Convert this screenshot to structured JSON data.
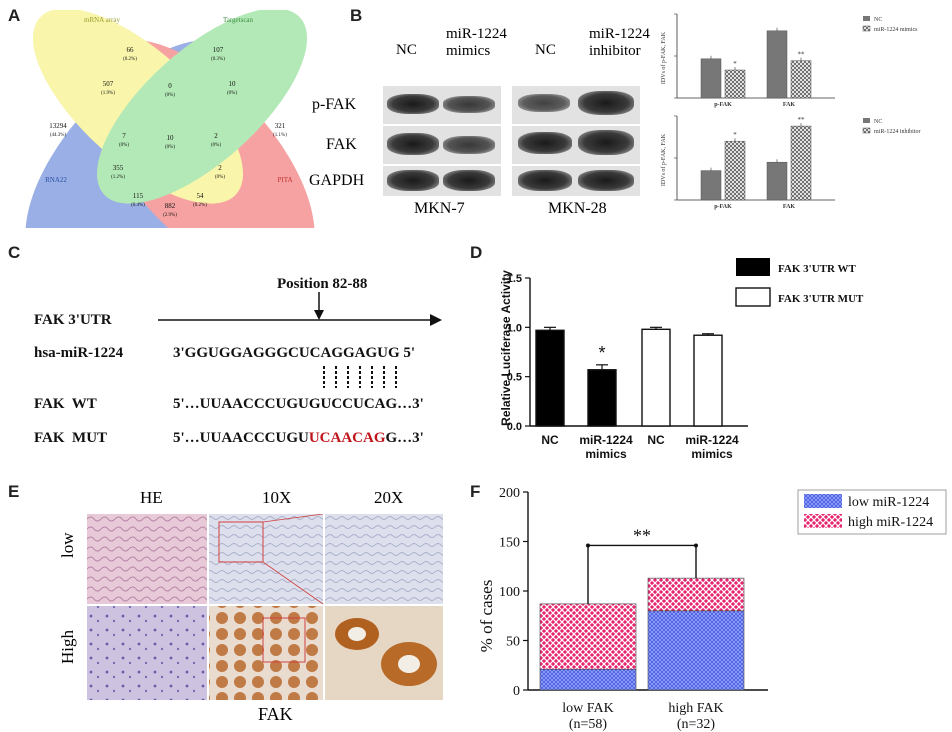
{
  "panels": {
    "a": "A",
    "b": "B",
    "c": "C",
    "d": "D",
    "e": "E",
    "f": "F"
  },
  "venn": {
    "sets": [
      "mRNA array",
      "Targetscan",
      "RNA22",
      "PITA"
    ],
    "colors": [
      "#f6ef77",
      "#86dc8a",
      "#5b7fd6",
      "#f26a6a"
    ],
    "regions": [
      {
        "count": "13294",
        "pct": "(44.3%)"
      },
      {
        "count": "66",
        "pct": "(0.2%)"
      },
      {
        "count": "107",
        "pct": "(0.3%)"
      },
      {
        "count": "321",
        "pct": "(1.1%)"
      },
      {
        "count": "507",
        "pct": "(1.9%)"
      },
      {
        "count": "0",
        "pct": "(0%)"
      },
      {
        "count": "10",
        "pct": "(0%)"
      },
      {
        "count": "7",
        "pct": "(0%)"
      },
      {
        "count": "2",
        "pct": "(0%)"
      },
      {
        "count": "10",
        "pct": "(0%)"
      },
      {
        "count": "355",
        "pct": "(1.2%)"
      },
      {
        "count": "2",
        "pct": "(0%)"
      },
      {
        "count": "115",
        "pct": "(0.4%)"
      },
      {
        "count": "54",
        "pct": "(0.2%)"
      },
      {
        "count": "882",
        "pct": "(2.9%)"
      }
    ]
  },
  "western": {
    "row_labels": [
      "p-FAK",
      "FAK",
      "GAPDH"
    ],
    "col1_labels": [
      "NC",
      "miR-1224 mimics"
    ],
    "col2_labels": [
      "NC",
      "miR-1224 inhibitor"
    ],
    "cell_lines": [
      "MKN-7",
      "MKN-28"
    ]
  },
  "bar_top": {
    "ylabel": "IDVs of p-FAK, FAK",
    "legend": [
      "NC",
      "miR-1224 mimics"
    ],
    "categories": [
      "p-FAK",
      "FAK"
    ],
    "marks": [
      "*",
      "**"
    ]
  },
  "bar_bottom": {
    "ylabel": "IDVs of p-FAK, FAK",
    "legend": [
      "NC",
      "miR-1224 inhibitor"
    ],
    "categories": [
      "p-FAK",
      "FAK"
    ],
    "marks": [
      "*",
      "**"
    ]
  },
  "sequence": {
    "position_label": "Position 82-88",
    "row_labels": [
      "FAK 3'UTR",
      "hsa-miR-1224",
      "FAK  WT",
      "FAK  MUT"
    ],
    "mir_seq": "3'GGUGGAGGGCUCAGGAGUG 5'",
    "wt_seq": "5'…UUAACCCUGUGUCCUCAG…3'",
    "mut_prefix": "5'…UUAACCCUGU",
    "mut_highlight": "UCAACAG",
    "mut_suffix": "G…3'",
    "highlight_color": "#c0141b"
  },
  "ihc": {
    "col_labels": [
      "HE",
      "10X",
      "20X"
    ],
    "row_labels": [
      "low",
      "High"
    ],
    "caption": "FAK"
  },
  "chart_data": [
    {
      "type": "bar",
      "panel": "B (upper)",
      "categories": [
        "p-FAK",
        "FAK"
      ],
      "ylabel": "IDVs of p-FAK, FAK",
      "series": [
        {
          "name": "NC",
          "values": [
            0.42,
            0.72
          ]
        },
        {
          "name": "miR-1224 mimics",
          "values": [
            0.3,
            0.4
          ]
        }
      ],
      "ylim": [
        0,
        0.9
      ]
    },
    {
      "type": "bar",
      "panel": "B (lower)",
      "categories": [
        "p-FAK",
        "FAK"
      ],
      "ylabel": "IDVs of p-FAK, FAK",
      "series": [
        {
          "name": "NC",
          "values": [
            0.35,
            0.45
          ]
        },
        {
          "name": "miR-1224 inhibitor",
          "values": [
            0.7,
            0.88
          ]
        }
      ],
      "ylim": [
        0,
        1.0
      ]
    },
    {
      "type": "bar",
      "panel": "D",
      "categories": [
        "NC",
        "miR-1224 mimics",
        "NC",
        "miR-1224 mimics"
      ],
      "values": [
        0.97,
        0.57,
        0.98,
        0.92
      ],
      "errors": [
        0.03,
        0.05,
        0.02,
        0.015
      ],
      "fills": [
        "#000000",
        "#000000",
        "#ffffff",
        "#ffffff"
      ],
      "legend": [
        "FAK 3'UTR WT",
        "FAK 3'UTR MUT"
      ],
      "ylabel": "Relative Luciferase Activity",
      "ylim": [
        0,
        1.5
      ],
      "yticks": [
        "0.0",
        "0.5",
        "1.0",
        "1.5"
      ],
      "significance": "*"
    },
    {
      "type": "bar",
      "panel": "F",
      "stacked": true,
      "categories": [
        "low FAK",
        "high FAK"
      ],
      "category_notes": [
        "(n=58)",
        "(n=32)"
      ],
      "series": [
        {
          "name": "low miR-1224",
          "values": [
            21,
            80
          ]
        },
        {
          "name": "high miR-1224",
          "values": [
            66,
            33
          ]
        }
      ],
      "ylabel": "% of cases",
      "ylim": [
        0,
        200
      ],
      "yticks": [
        "0",
        "50",
        "100",
        "150",
        "200"
      ],
      "significance": "**"
    }
  ]
}
